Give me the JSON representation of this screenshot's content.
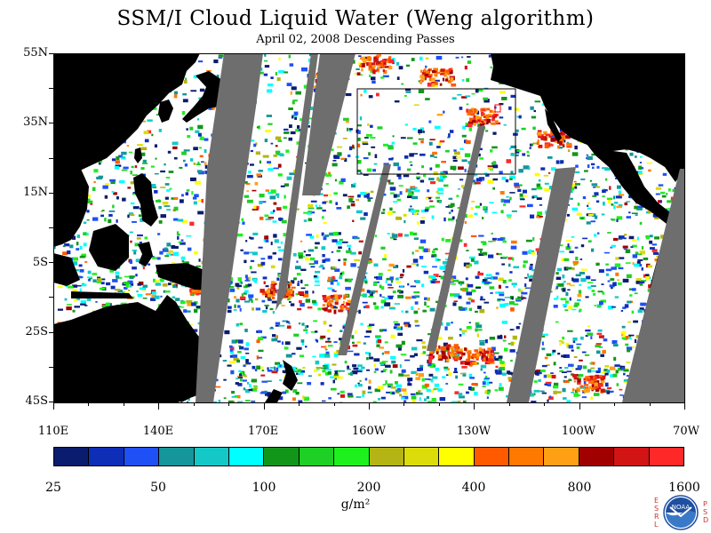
{
  "title": "SSM/I Cloud Liquid Water (Weng algorithm)",
  "subtitle": "April 02, 2008  Descending Passes",
  "latitude_labels": [
    "55N",
    "35N",
    "15N",
    "5S",
    "25S",
    "45S"
  ],
  "longitude_labels": [
    "110E",
    "140E",
    "170E",
    "160W",
    "130W",
    "100W",
    "70W"
  ],
  "colorbar": {
    "labels": [
      "25",
      "50",
      "100",
      "200",
      "400",
      "800",
      "1600"
    ],
    "unit": "g/m²",
    "colors": [
      "#0a1c6e",
      "#0e2eb8",
      "#1e50f5",
      "#14969a",
      "#14c8c8",
      "#00ffff",
      "#12961a",
      "#1ecf26",
      "#1ef01e",
      "#b4b414",
      "#dcdc0a",
      "#ffff00",
      "#ff5a00",
      "#ff7800",
      "#ffa014",
      "#a00000",
      "#d21414",
      "#ff2828"
    ]
  },
  "colors": {
    "land": "#000000",
    "no_data_gap": "#6e6e6e",
    "clear_ocean": "#ffffff"
  },
  "logo": {
    "name": "NOAA",
    "letters_left": [
      "E",
      "S",
      "R",
      "L"
    ],
    "letters_right": [
      "P",
      "S",
      "D"
    ]
  }
}
